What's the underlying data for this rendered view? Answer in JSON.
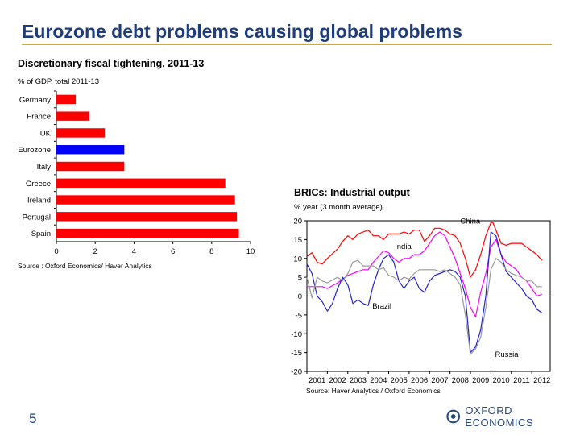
{
  "slide": {
    "title": "Eurozone debt problems causing global problems",
    "page_number": "5",
    "logo_text": "OXFORD ECONOMICS",
    "accent_color": "#c8a951",
    "title_color": "#1f3d7a"
  },
  "left_chart": {
    "title": "Discretionary fiscal tightening, 2011-13",
    "subtitle": "% of GDP, total 2011-13",
    "source": "Source : Oxford Economics/ Haver Analytics"
  },
  "right_chart": {
    "title": "BRICs: Industrial output",
    "subtitle": "% year (3 month average)",
    "source": "Source: Haver Analytics / Oxford Economics"
  },
  "chart_data": [
    {
      "type": "bar",
      "orientation": "horizontal",
      "title": "Discretionary fiscal tightening, 2011-13",
      "subtitle": "% of GDP, total 2011-13",
      "categories": [
        "Germany",
        "France",
        "UK",
        "Eurozone",
        "Italy",
        "Greece",
        "Ireland",
        "Portugal",
        "Spain"
      ],
      "values": [
        1.0,
        1.7,
        2.5,
        3.5,
        3.5,
        8.7,
        9.2,
        9.3,
        9.4
      ],
      "colors": [
        "#ff0000",
        "#ff0000",
        "#ff0000",
        "#0000ff",
        "#ff0000",
        "#ff0000",
        "#ff0000",
        "#ff0000",
        "#ff0000"
      ],
      "xlim": [
        0,
        10
      ],
      "xticks": [
        0,
        2,
        4,
        6,
        8,
        10
      ],
      "grid": false
    },
    {
      "type": "line",
      "title": "BRICs: Industrial output",
      "subtitle": "% year (3 month average)",
      "xlim": [
        2001,
        2012.9
      ],
      "ylim": [
        -20,
        20
      ],
      "yticks": [
        20,
        15,
        10,
        5,
        0,
        -5,
        -10,
        -15,
        -20
      ],
      "xticks": [
        "2001",
        "2002",
        "2003",
        "2004",
        "2005",
        "2006",
        "2007",
        "2008",
        "2009",
        "2010",
        "2011",
        "2012"
      ],
      "grid": false,
      "series": [
        {
          "name": "China",
          "color": "#ff0000",
          "points": [
            [
              2001.0,
              10.5
            ],
            [
              2001.25,
              11.5
            ],
            [
              2001.5,
              9
            ],
            [
              2001.75,
              8.5
            ],
            [
              2002.0,
              10
            ],
            [
              2002.5,
              12.5
            ],
            [
              2002.75,
              14.5
            ],
            [
              2003.0,
              16
            ],
            [
              2003.25,
              15
            ],
            [
              2003.5,
              16.5
            ],
            [
              2003.75,
              17
            ],
            [
              2004.0,
              17.5
            ],
            [
              2004.25,
              16
            ],
            [
              2004.5,
              16
            ],
            [
              2004.75,
              15
            ],
            [
              2005.0,
              16.5
            ],
            [
              2005.25,
              16.5
            ],
            [
              2005.5,
              16.5
            ],
            [
              2005.75,
              17
            ],
            [
              2006.0,
              16.5
            ],
            [
              2006.25,
              17.5
            ],
            [
              2006.5,
              17.5
            ],
            [
              2006.75,
              14.5
            ],
            [
              2007.0,
              16
            ],
            [
              2007.25,
              18
            ],
            [
              2007.5,
              18
            ],
            [
              2007.75,
              17.5
            ],
            [
              2008.0,
              16.5
            ],
            [
              2008.25,
              16
            ],
            [
              2008.5,
              14
            ],
            [
              2008.75,
              10
            ],
            [
              2009.0,
              5
            ],
            [
              2009.25,
              7
            ],
            [
              2009.5,
              11
            ],
            [
              2009.75,
              16
            ],
            [
              2010.0,
              19.5
            ],
            [
              2010.1,
              19.5
            ],
            [
              2010.25,
              17.5
            ],
            [
              2010.5,
              14
            ],
            [
              2010.75,
              13.5
            ],
            [
              2011.0,
              14
            ],
            [
              2011.25,
              14
            ],
            [
              2011.5,
              14
            ],
            [
              2011.75,
              13
            ],
            [
              2012.0,
              12
            ],
            [
              2012.25,
              11
            ],
            [
              2012.5,
              9.5
            ]
          ]
        },
        {
          "name": "India",
          "color": "#ff00ff",
          "points": [
            [
              2001.0,
              2.5
            ],
            [
              2001.25,
              2.5
            ],
            [
              2001.5,
              2.5
            ],
            [
              2001.75,
              2.5
            ],
            [
              2002.0,
              2
            ],
            [
              2002.5,
              3.5
            ],
            [
              2002.75,
              4.5
            ],
            [
              2003.0,
              5.5
            ],
            [
              2003.5,
              6.5
            ],
            [
              2003.75,
              7
            ],
            [
              2004.0,
              7
            ],
            [
              2004.25,
              9
            ],
            [
              2004.5,
              10.5
            ],
            [
              2004.75,
              12
            ],
            [
              2005.0,
              11.5
            ],
            [
              2005.25,
              10
            ],
            [
              2005.5,
              9
            ],
            [
              2005.75,
              10
            ],
            [
              2006.0,
              10
            ],
            [
              2006.25,
              11
            ],
            [
              2006.5,
              11
            ],
            [
              2006.75,
              12
            ],
            [
              2007.0,
              14
            ],
            [
              2007.25,
              16
            ],
            [
              2007.5,
              17
            ],
            [
              2007.75,
              16
            ],
            [
              2008.0,
              13
            ],
            [
              2008.25,
              10
            ],
            [
              2008.5,
              6
            ],
            [
              2008.75,
              2
            ],
            [
              2009.0,
              -3
            ],
            [
              2009.25,
              -5.5
            ],
            [
              2009.5,
              1
            ],
            [
              2009.75,
              6
            ],
            [
              2010.0,
              13
            ],
            [
              2010.25,
              15
            ],
            [
              2010.5,
              11
            ],
            [
              2010.75,
              9
            ],
            [
              2011.0,
              8
            ],
            [
              2011.25,
              7
            ],
            [
              2011.5,
              5
            ],
            [
              2011.75,
              4
            ],
            [
              2012.0,
              2
            ],
            [
              2012.25,
              0
            ],
            [
              2012.5,
              0.5
            ]
          ]
        },
        {
          "name": "Brazil",
          "color": "#2222cc",
          "points": [
            [
              2001.0,
              8.5
            ],
            [
              2001.25,
              6
            ],
            [
              2001.5,
              0
            ],
            [
              2001.75,
              -1.5
            ],
            [
              2002.0,
              -4
            ],
            [
              2002.25,
              -2
            ],
            [
              2002.5,
              2
            ],
            [
              2002.75,
              5
            ],
            [
              2003.0,
              3
            ],
            [
              2003.25,
              -2
            ],
            [
              2003.5,
              -1
            ],
            [
              2003.75,
              -2
            ],
            [
              2004.0,
              -2.5
            ],
            [
              2004.25,
              3
            ],
            [
              2004.5,
              7
            ],
            [
              2004.75,
              10
            ],
            [
              2005.0,
              11
            ],
            [
              2005.25,
              9
            ],
            [
              2005.5,
              4
            ],
            [
              2005.75,
              2
            ],
            [
              2006.0,
              4
            ],
            [
              2006.25,
              5
            ],
            [
              2006.5,
              2
            ],
            [
              2006.75,
              1
            ],
            [
              2007.0,
              4
            ],
            [
              2007.25,
              5.5
            ],
            [
              2007.5,
              6
            ],
            [
              2007.75,
              6.5
            ],
            [
              2008.0,
              7
            ],
            [
              2008.25,
              6.5
            ],
            [
              2008.5,
              5
            ],
            [
              2008.75,
              0
            ],
            [
              2009.0,
              -15
            ],
            [
              2009.25,
              -13.5
            ],
            [
              2009.5,
              -9
            ],
            [
              2009.75,
              0
            ],
            [
              2010.0,
              17
            ],
            [
              2010.25,
              16
            ],
            [
              2010.5,
              11
            ],
            [
              2010.75,
              6.5
            ],
            [
              2011.0,
              5
            ],
            [
              2011.25,
              3.5
            ],
            [
              2011.5,
              2
            ],
            [
              2011.75,
              0
            ],
            [
              2012.0,
              -1
            ],
            [
              2012.25,
              -3.5
            ],
            [
              2012.5,
              -4.5
            ]
          ]
        },
        {
          "name": "Russia",
          "color": "#999999",
          "points": [
            [
              2001.0,
              5
            ],
            [
              2001.25,
              -0.5
            ],
            [
              2001.5,
              5
            ],
            [
              2001.75,
              4
            ],
            [
              2002.0,
              3.5
            ],
            [
              2002.5,
              5
            ],
            [
              2002.75,
              4
            ],
            [
              2003.0,
              6
            ],
            [
              2003.25,
              9
            ],
            [
              2003.5,
              9.5
            ],
            [
              2003.75,
              8
            ],
            [
              2004.0,
              8
            ],
            [
              2004.25,
              8
            ],
            [
              2004.5,
              7
            ],
            [
              2004.75,
              7.5
            ],
            [
              2005.0,
              5.5
            ],
            [
              2005.25,
              5
            ],
            [
              2005.5,
              4
            ],
            [
              2005.75,
              5
            ],
            [
              2006.0,
              4.5
            ],
            [
              2006.25,
              6
            ],
            [
              2006.5,
              7
            ],
            [
              2006.75,
              7
            ],
            [
              2007.0,
              7
            ],
            [
              2007.25,
              7
            ],
            [
              2007.5,
              6.5
            ],
            [
              2007.75,
              7
            ],
            [
              2008.0,
              6
            ],
            [
              2008.25,
              5
            ],
            [
              2008.5,
              3
            ],
            [
              2008.75,
              -5
            ],
            [
              2009.0,
              -15.5
            ],
            [
              2009.25,
              -14
            ],
            [
              2009.5,
              -11
            ],
            [
              2009.75,
              -3
            ],
            [
              2010.0,
              7
            ],
            [
              2010.25,
              10
            ],
            [
              2010.5,
              9
            ],
            [
              2010.75,
              7
            ],
            [
              2011.0,
              6
            ],
            [
              2011.25,
              5.5
            ],
            [
              2011.5,
              5
            ],
            [
              2011.75,
              4
            ],
            [
              2012.0,
              4
            ],
            [
              2012.25,
              2.5
            ],
            [
              2012.5,
              2.5
            ]
          ]
        }
      ],
      "annotations": [
        {
          "text": "China",
          "x": 2008.5,
          "y": 19.2
        },
        {
          "text": "India",
          "x": 2005.3,
          "y": 12.5
        },
        {
          "text": "Brazil",
          "x": 2004.2,
          "y": -3.3
        },
        {
          "text": "Russia",
          "x": 2010.2,
          "y": -16.2
        }
      ]
    }
  ]
}
